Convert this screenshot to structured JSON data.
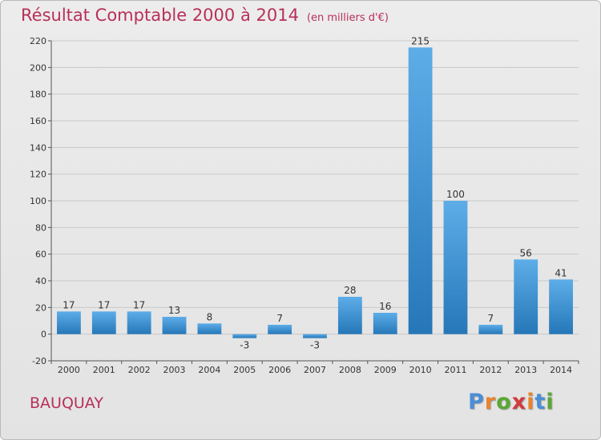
{
  "header": {
    "title": "Résultat Comptable 2000 à 2014",
    "unit": "(en milliers d'€)"
  },
  "footer": {
    "commune": "BAUQUAY",
    "logo_text": "Proxiti",
    "logo_colors": [
      "#4a8ed6",
      "#e9842e",
      "#5aa832",
      "#d23b3b",
      "#e9842e",
      "#4a8ed6",
      "#5aa832"
    ]
  },
  "colors": {
    "title": "#b8305a",
    "bar_light": "#5dade8",
    "bar_dark": "#2577b8",
    "grid": "#c8c8c8"
  },
  "chart_data": {
    "type": "bar",
    "categories": [
      "2000",
      "2001",
      "2002",
      "2003",
      "2004",
      "2005",
      "2006",
      "2007",
      "2008",
      "2009",
      "2010",
      "2011",
      "2012",
      "2013",
      "2014"
    ],
    "values": [
      17,
      17,
      17,
      13,
      8,
      -3,
      7,
      -3,
      28,
      16,
      215,
      100,
      7,
      56,
      41
    ],
    "ylim": [
      -20,
      220
    ],
    "yticks": [
      -20,
      0,
      20,
      40,
      60,
      80,
      100,
      120,
      140,
      160,
      180,
      200,
      220
    ],
    "grid": true,
    "data_labels": true
  }
}
